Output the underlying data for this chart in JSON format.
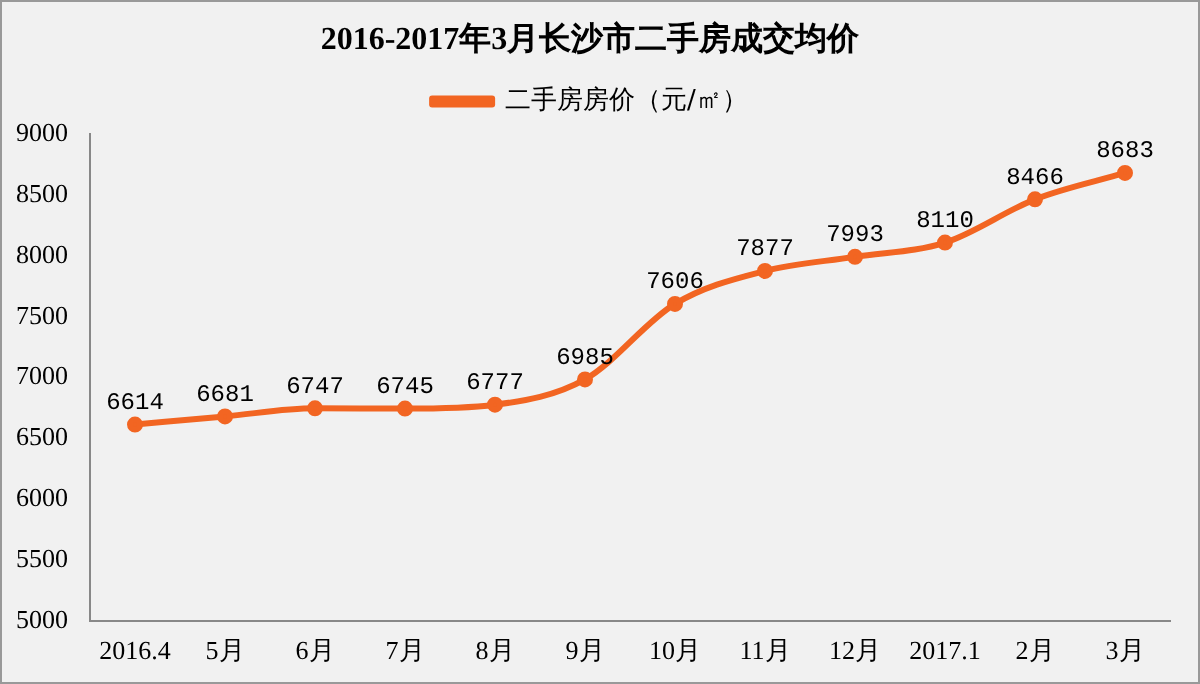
{
  "chart_data": {
    "type": "line",
    "title": "2016-2017年3月长沙市二手房成交均价",
    "categories": [
      "2016.4",
      "5月",
      "6月",
      "7月",
      "8月",
      "9月",
      "10月",
      "11月",
      "12月",
      "2017.1",
      "2月",
      "3月"
    ],
    "series": [
      {
        "name": "二手房房价（元/㎡）",
        "color": "#f26522",
        "values": [
          6614,
          6681,
          6747,
          6745,
          6777,
          6985,
          7606,
          7877,
          7993,
          8110,
          8466,
          8683
        ]
      }
    ],
    "ylim": [
      5000,
      9000
    ],
    "yticks": [
      5000,
      5500,
      6000,
      6500,
      7000,
      7500,
      8000,
      8500,
      9000
    ],
    "grid": false,
    "legend": "top",
    "marker": "circle",
    "line_style": "solid",
    "data_labels": true
  }
}
